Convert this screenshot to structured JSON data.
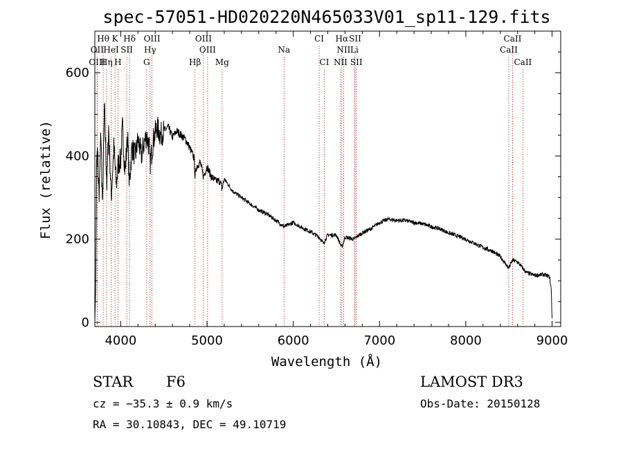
{
  "chart_data": {
    "type": "line",
    "title": "spec-57051-HD020220N465033V01_sp11-129.fits",
    "xlabel": "Wavelength (Å)",
    "ylabel": "Flux (relative)",
    "xlim": [
      3700,
      9100
    ],
    "ylim": [
      -10,
      700
    ],
    "xticks": [
      4000,
      5000,
      6000,
      7000,
      8000,
      9000
    ],
    "yticks": [
      0,
      200,
      400,
      600
    ],
    "series": [
      {
        "name": "flux",
        "x": [
          3700,
          3710,
          3720,
          3730,
          3750,
          3770,
          3790,
          3810,
          3840,
          3860,
          3890,
          3920,
          3950,
          3970,
          4000,
          4020,
          4050,
          4080,
          4100,
          4130,
          4170,
          4200,
          4240,
          4270,
          4300,
          4330,
          4340,
          4380,
          4420,
          4460,
          4500,
          4550,
          4600,
          4650,
          4700,
          4750,
          4800,
          4850,
          4861,
          4880,
          4920,
          4960,
          5000,
          5050,
          5100,
          5150,
          5175,
          5200,
          5300,
          5400,
          5500,
          5600,
          5700,
          5800,
          5893,
          5950,
          6000,
          6100,
          6200,
          6300,
          6350,
          6400,
          6500,
          6563,
          6600,
          6700,
          6800,
          6900,
          7000,
          7100,
          7200,
          7300,
          7400,
          7500,
          7600,
          7700,
          7800,
          7900,
          8000,
          8100,
          8200,
          8300,
          8400,
          8498,
          8542,
          8600,
          8662,
          8700,
          8800,
          8900,
          8970,
          8990,
          9000
        ],
        "values": [
          5,
          80,
          390,
          420,
          300,
          460,
          270,
          520,
          330,
          470,
          300,
          420,
          330,
          380,
          390,
          470,
          360,
          450,
          330,
          420,
          400,
          440,
          400,
          430,
          450,
          420,
          380,
          440,
          470,
          450,
          460,
          470,
          445,
          460,
          450,
          440,
          420,
          395,
          350,
          375,
          385,
          350,
          375,
          350,
          340,
          340,
          320,
          345,
          315,
          300,
          285,
          270,
          260,
          245,
          230,
          235,
          240,
          228,
          218,
          205,
          190,
          210,
          210,
          180,
          205,
          200,
          215,
          225,
          240,
          248,
          245,
          245,
          240,
          237,
          230,
          225,
          215,
          208,
          200,
          190,
          180,
          172,
          158,
          130,
          150,
          145,
          130,
          120,
          113,
          115,
          110,
          80,
          10
        ]
      }
    ],
    "lines": [
      {
        "label": "Hθ",
        "wavelength": 3797,
        "row": 1
      },
      {
        "label": "K",
        "wavelength": 3934,
        "row": 1
      },
      {
        "label": "Hδ",
        "wavelength": 4102,
        "row": 1
      },
      {
        "label": "OIII",
        "wavelength": 4363,
        "row": 1
      },
      {
        "label": "OIII",
        "wavelength": 4959,
        "row": 1
      },
      {
        "label": "CI",
        "wavelength": 6300,
        "row": 1
      },
      {
        "label": "Hα",
        "wavelength": 6563,
        "row": 1
      },
      {
        "label": "SII",
        "wavelength": 6717,
        "row": 1
      },
      {
        "label": "CaII",
        "wavelength": 8542,
        "row": 1
      },
      {
        "label": "OII",
        "wavelength": 3727,
        "row": 2
      },
      {
        "label": "HeI",
        "wavelength": 3889,
        "row": 2
      },
      {
        "label": "SII",
        "wavelength": 4070,
        "row": 2
      },
      {
        "label": "Hγ",
        "wavelength": 4340,
        "row": 2
      },
      {
        "label": "OIII",
        "wavelength": 5007,
        "row": 2
      },
      {
        "label": "Na",
        "wavelength": 5893,
        "row": 2
      },
      {
        "label": "NII",
        "wavelength": 6584,
        "row": 2
      },
      {
        "label": "Li",
        "wavelength": 6708,
        "row": 2
      },
      {
        "label": "CaII",
        "wavelength": 8498,
        "row": 2
      },
      {
        "label": "OIII",
        "wavelength": 3727,
        "row": 3
      },
      {
        "label": "Hη",
        "wavelength": 3835,
        "row": 3
      },
      {
        "label": "H",
        "wavelength": 3968,
        "row": 3
      },
      {
        "label": "G",
        "wavelength": 4300,
        "row": 3
      },
      {
        "label": "Hβ",
        "wavelength": 4861,
        "row": 3
      },
      {
        "label": "Mg",
        "wavelength": 5175,
        "row": 3
      },
      {
        "label": "CI",
        "wavelength": 6360,
        "row": 3
      },
      {
        "label": "NII",
        "wavelength": 6548,
        "row": 3
      },
      {
        "label": "SII",
        "wavelength": 6731,
        "row": 3
      },
      {
        "label": "CaII",
        "wavelength": 8662,
        "row": 3
      }
    ]
  },
  "info": {
    "star": "STAR",
    "subclass": "F6",
    "survey": "LAMOST DR3",
    "cz": "cz = −35.3 ± 0.9 km/s",
    "obs_date": "Obs-Date: 20150128",
    "coords": "RA =  30.10843, DEC =  49.10719"
  }
}
